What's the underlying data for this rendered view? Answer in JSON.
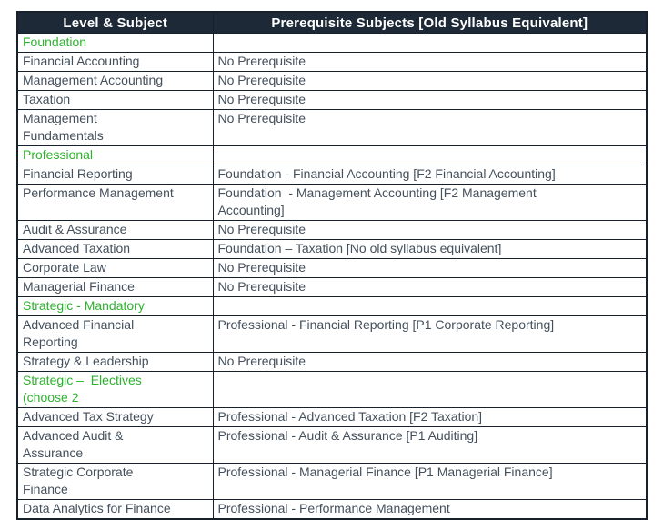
{
  "colors": {
    "header_bg": "#1d2936",
    "header_text": "#ffffff",
    "border": "#17212b",
    "body_text": "#44505c",
    "section_green": "#2cb32c",
    "page_bg": "#ffffff"
  },
  "table": {
    "headers": [
      "Level & Subject",
      "Prerequisite Subjects [Old Syllabus Equivalent]"
    ],
    "rows": [
      {
        "section": true,
        "subject": "Foundation",
        "prereq": ""
      },
      {
        "section": false,
        "subject": "Financial Accounting",
        "prereq": "No Prerequisite"
      },
      {
        "section": false,
        "subject": "Management Accounting",
        "prereq": "No Prerequisite"
      },
      {
        "section": false,
        "subject": "Taxation",
        "prereq": "No Prerequisite"
      },
      {
        "section": false,
        "subject": "Management\nFundamentals",
        "prereq": "No Prerequisite"
      },
      {
        "section": true,
        "subject": "Professional",
        "prereq": ""
      },
      {
        "section": false,
        "subject": "Financial Reporting",
        "prereq": "Foundation - Financial Accounting [F2 Financial Accounting]"
      },
      {
        "section": false,
        "subject": "Performance Management",
        "prereq": "Foundation  - Management Accounting [F2 Management\nAccounting]"
      },
      {
        "section": false,
        "subject": "Audit & Assurance",
        "prereq": "No Prerequisite"
      },
      {
        "section": false,
        "subject": "Advanced Taxation",
        "prereq": "Foundation – Taxation [No old syllabus equivalent]"
      },
      {
        "section": false,
        "subject": "Corporate Law",
        "prereq": "No Prerequisite"
      },
      {
        "section": false,
        "subject": "Managerial Finance",
        "prereq": "No Prerequisite"
      },
      {
        "section": true,
        "subject": "Strategic - Mandatory",
        "prereq": ""
      },
      {
        "section": false,
        "subject": "Advanced Financial\nReporting",
        "prereq": "Professional - Financial Reporting [P1 Corporate Reporting]"
      },
      {
        "section": false,
        "subject": "Strategy & Leadership",
        "prereq": "No Prerequisite"
      },
      {
        "section": true,
        "subject": "Strategic –  Electives\n(choose 2",
        "prereq": ""
      },
      {
        "section": false,
        "subject": "Advanced Tax Strategy",
        "prereq": "Professional - Advanced Taxation [F2 Taxation]"
      },
      {
        "section": false,
        "subject": "Advanced Audit &\nAssurance",
        "prereq": "Professional - Audit & Assurance [P1 Auditing]"
      },
      {
        "section": false,
        "subject": "Strategic Corporate\nFinance",
        "prereq": "Professional - Managerial Finance [P1 Managerial Finance]"
      },
      {
        "section": false,
        "subject": "Data Analytics for Finance",
        "prereq": "Professional - Performance Management"
      }
    ]
  }
}
